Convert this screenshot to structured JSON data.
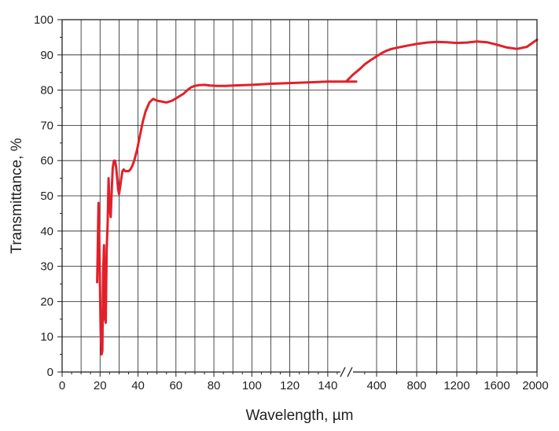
{
  "chart_data": {
    "type": "line",
    "xlabel": "Wavelength, µm",
    "ylabel": "Transmittance, %",
    "line_color": "#e2202a",
    "grid": true,
    "broken_x_axis": true,
    "ylim": [
      0,
      100
    ],
    "y_ticks": [
      "0",
      "10",
      "20",
      "30",
      "40",
      "50",
      "60",
      "70",
      "80",
      "90",
      "100"
    ],
    "x_segment_1": {
      "xlim": [
        0,
        160
      ],
      "ticks": [
        "0",
        "20",
        "40",
        "60",
        "80",
        "100",
        "120",
        "140"
      ]
    },
    "x_segment_2": {
      "xlim": [
        0,
        2000
      ],
      "ticks": [
        "400",
        "800",
        "1200",
        "1600",
        "2000"
      ]
    },
    "series": [
      {
        "segment": 1,
        "x": [
          18.5,
          19.2,
          19.8,
          20.3,
          20.8,
          21.2,
          21.6,
          22.1,
          22.6,
          23.0,
          23.5,
          24.0,
          24.5,
          25.0,
          25.6,
          26.2,
          26.7,
          27.3,
          27.9,
          28.5,
          29.0,
          29.5,
          30.0,
          30.6,
          31.2,
          31.8,
          32.5,
          33.2,
          34.0,
          35.0,
          36.0,
          37.0,
          38.0,
          39.5,
          41.0,
          42.5,
          44.0,
          46.0,
          48.0,
          50.0,
          52.0,
          55.0,
          58.0,
          61.0,
          64.0,
          66.0,
          68.0,
          70.0,
          72.0,
          75.0,
          78.0,
          82.0,
          86.0,
          90.0,
          100.0,
          110.0,
          120.0,
          130.0,
          140.0,
          150.0,
          155.0
        ],
        "y": [
          25.5,
          48.0,
          30.0,
          12.0,
          5.0,
          6.0,
          28.0,
          36.0,
          15.0,
          14.0,
          35.0,
          42.0,
          55.0,
          47.0,
          44.0,
          52.0,
          58.0,
          60.0,
          60.0,
          58.0,
          55.0,
          52.0,
          50.5,
          52.5,
          55.0,
          57.0,
          57.5,
          57.0,
          57.0,
          57.0,
          57.5,
          58.5,
          60.0,
          63.0,
          67.0,
          71.0,
          74.0,
          76.5,
          77.5,
          77.0,
          76.8,
          76.5,
          77.0,
          78.0,
          79.0,
          80.0,
          80.8,
          81.2,
          81.4,
          81.5,
          81.3,
          81.2,
          81.2,
          81.3,
          81.5,
          81.8,
          82.0,
          82.2,
          82.4,
          82.4,
          82.4
        ]
      },
      {
        "segment": 2,
        "x": [
          150,
          170,
          200,
          260,
          300,
          350,
          400,
          450,
          500,
          550,
          600,
          700,
          800,
          900,
          1000,
          1100,
          1200,
          1300,
          1400,
          1500,
          1600,
          1700,
          1800,
          1900,
          1950,
          2000
        ],
        "y": [
          82.6,
          83.3,
          84.3,
          86.0,
          87.3,
          88.5,
          89.6,
          90.5,
          91.2,
          91.7,
          92.0,
          92.6,
          93.1,
          93.5,
          93.7,
          93.6,
          93.4,
          93.5,
          93.8,
          93.6,
          92.9,
          92.1,
          91.7,
          92.3,
          93.3,
          94.3
        ]
      }
    ]
  }
}
